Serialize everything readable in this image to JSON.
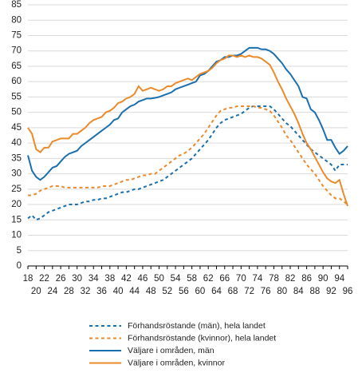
{
  "chart_data": {
    "type": "line",
    "x": [
      18,
      19,
      20,
      21,
      22,
      23,
      24,
      25,
      26,
      27,
      28,
      29,
      30,
      31,
      32,
      33,
      34,
      35,
      36,
      37,
      38,
      39,
      40,
      41,
      42,
      43,
      44,
      45,
      46,
      47,
      48,
      49,
      50,
      51,
      52,
      53,
      54,
      55,
      56,
      57,
      58,
      59,
      60,
      61,
      62,
      63,
      64,
      65,
      66,
      67,
      68,
      69,
      70,
      71,
      72,
      73,
      74,
      75,
      76,
      77,
      78,
      79,
      80,
      81,
      82,
      83,
      84,
      85,
      86,
      87,
      88,
      89,
      90,
      91,
      92,
      93,
      94,
      95,
      96
    ],
    "xlim": [
      18,
      96
    ],
    "xticks": [
      18,
      20,
      22,
      24,
      26,
      28,
      30,
      32,
      34,
      36,
      38,
      40,
      42,
      44,
      46,
      48,
      50,
      52,
      54,
      56,
      58,
      60,
      62,
      64,
      66,
      68,
      70,
      72,
      74,
      76,
      78,
      80,
      82,
      84,
      86,
      88,
      90,
      92,
      94,
      96
    ],
    "ylim": [
      0,
      85
    ],
    "yticks": [
      0,
      5,
      10,
      15,
      20,
      25,
      30,
      35,
      40,
      45,
      50,
      55,
      60,
      65,
      70,
      75,
      80,
      85
    ],
    "grid": true,
    "legend": "bottom",
    "series": [
      {
        "name": "Förhandsröstande (män), hela landet",
        "color": "#1a6faf",
        "style": "dashed",
        "values": [
          15.5,
          16.5,
          15,
          15.5,
          16.5,
          17.5,
          18,
          18.5,
          19,
          19.5,
          20,
          20,
          20,
          20.5,
          21,
          21,
          21.5,
          21.5,
          22,
          22,
          22.5,
          23,
          23.5,
          24,
          24,
          24.5,
          25,
          25,
          25.5,
          26,
          26.5,
          27,
          27.5,
          28,
          29,
          30,
          31,
          32,
          33,
          34,
          35,
          36.5,
          38,
          39.5,
          41,
          43,
          45,
          46.5,
          47.5,
          48,
          48.5,
          49,
          49.5,
          50.5,
          51.5,
          52,
          52,
          52,
          52,
          52,
          51,
          49.5,
          48,
          46.5,
          45.5,
          44,
          42.5,
          41,
          39.5,
          38,
          37,
          36,
          35,
          34,
          33,
          31,
          33,
          33,
          33
        ]
      },
      {
        "name": "Förhandsröstande (kvinnor), hela landet",
        "color": "#eb8a2a",
        "style": "dashed",
        "values": [
          23,
          23,
          23.5,
          24.5,
          25,
          25.5,
          26,
          26,
          26,
          25.5,
          25.5,
          25.5,
          25.5,
          25.5,
          25.5,
          25.5,
          25.5,
          25.5,
          26,
          26,
          26,
          26.5,
          27,
          27.5,
          28,
          28,
          28.5,
          29,
          29.5,
          29.5,
          30,
          30,
          31,
          32,
          33,
          34,
          35,
          36,
          36.5,
          37.5,
          38.5,
          40,
          41.5,
          43,
          45,
          47,
          49,
          50.5,
          51,
          51.5,
          51.5,
          52,
          52,
          52,
          52,
          52,
          51.5,
          51.5,
          51,
          50.5,
          49,
          47,
          45,
          42.5,
          41,
          39,
          37,
          35,
          33,
          31.5,
          30,
          28,
          26,
          24.5,
          23,
          22,
          22,
          21,
          20
        ]
      },
      {
        "name": "Väljare i områden, män",
        "color": "#1a6faf",
        "style": "solid",
        "values": [
          36,
          31,
          29,
          28,
          29,
          30.5,
          32,
          32.5,
          34,
          35.5,
          36.5,
          37,
          37.5,
          39,
          40,
          41,
          42,
          43,
          44,
          45,
          46,
          47.5,
          48,
          50,
          51,
          52,
          52.5,
          53.5,
          54,
          54.5,
          54.5,
          54.7,
          55,
          55.5,
          56,
          56.5,
          57.5,
          58,
          58.5,
          59,
          59.5,
          60,
          62,
          62.5,
          63.5,
          65,
          66.5,
          67,
          68,
          68,
          68.5,
          68.5,
          69,
          70,
          71,
          71,
          71,
          70.5,
          70.5,
          70,
          69,
          67.5,
          66,
          64,
          62.5,
          60.5,
          58.5,
          55,
          54.5,
          51,
          50,
          47.5,
          44.5,
          41,
          41,
          38.5,
          36.5,
          37.5,
          39
        ]
      },
      {
        "name": "Väljare i områden, kvinnor",
        "color": "#eb8a2a",
        "style": "solid",
        "values": [
          45,
          43,
          38,
          37,
          38.5,
          38.5,
          40.5,
          41,
          41.5,
          41.5,
          41.5,
          43,
          43,
          44,
          45,
          46.5,
          47.5,
          48,
          48.5,
          50,
          50.5,
          51.5,
          53,
          53.5,
          54.5,
          55,
          56,
          58.5,
          57,
          57.5,
          58,
          57.5,
          57,
          57.5,
          58.5,
          58.5,
          59.5,
          60,
          60.5,
          61,
          60.5,
          61.5,
          62.5,
          63,
          63.5,
          64.5,
          66,
          67,
          67.5,
          68.5,
          68.5,
          68,
          68.5,
          68,
          68.5,
          68,
          68,
          67.5,
          66.5,
          65.5,
          63,
          60,
          57.5,
          54.5,
          52,
          49.5,
          46.5,
          43,
          40,
          38,
          35.5,
          33,
          30.5,
          28.5,
          27.5,
          27,
          28,
          23.5,
          19.5
        ]
      }
    ]
  }
}
